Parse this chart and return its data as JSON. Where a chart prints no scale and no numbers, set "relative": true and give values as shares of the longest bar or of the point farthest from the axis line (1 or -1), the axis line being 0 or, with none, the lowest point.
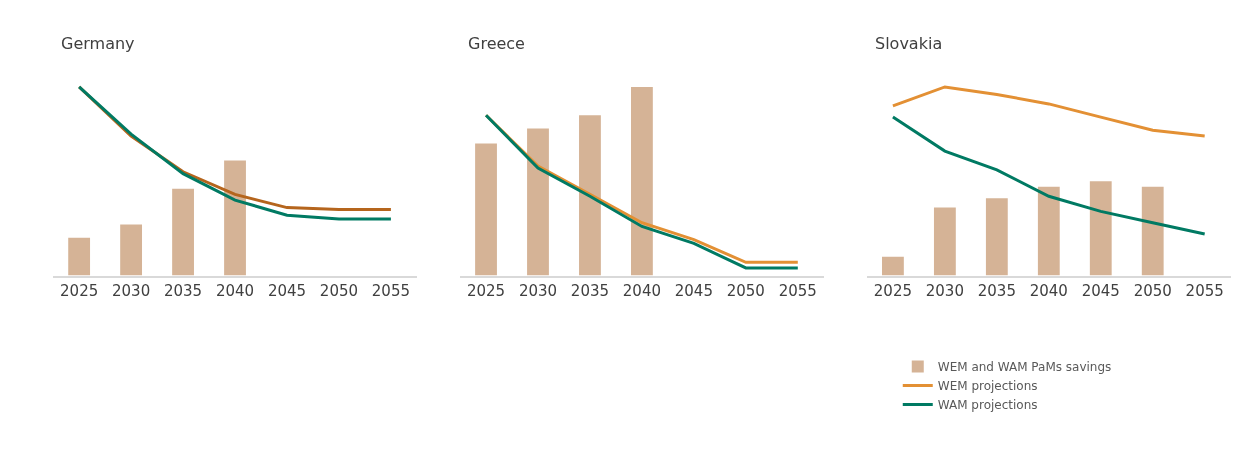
{
  "chart_data": [
    {
      "type": "bar",
      "title": "Germany",
      "categories": [
        "2025",
        "2030",
        "2035",
        "2040",
        "2045",
        "2050",
        "2055"
      ],
      "relative": true,
      "legend": false,
      "series": [
        {
          "color": "#d5b396",
          "values": [
            0.2,
            0.27,
            0.46,
            0.61,
            null,
            null,
            null
          ]
        },
        {
          "type": "line",
          "color": "#b5651d",
          "values": [
            1.0,
            0.74,
            0.55,
            0.43,
            0.36,
            0.35,
            0.35
          ]
        },
        {
          "type": "line",
          "color": "#007a63",
          "values": [
            1.0,
            0.75,
            0.54,
            0.4,
            0.32,
            0.3,
            0.3
          ]
        }
      ]
    },
    {
      "type": "bar",
      "title": "Greece",
      "categories": [
        "2025",
        "2030",
        "2035",
        "2040",
        "2045",
        "2050",
        "2055"
      ],
      "relative": true,
      "legend": false,
      "series": [
        {
          "color": "#d5b396",
          "values": [
            0.7,
            0.78,
            0.85,
            1.0,
            null,
            null,
            null
          ]
        },
        {
          "type": "line",
          "color": "#e39034",
          "values": [
            0.85,
            0.58,
            0.43,
            0.28,
            0.19,
            0.07,
            0.07
          ]
        },
        {
          "type": "line",
          "color": "#007a63",
          "values": [
            0.85,
            0.57,
            0.42,
            0.26,
            0.17,
            0.04,
            0.04
          ]
        }
      ]
    },
    {
      "type": "bar",
      "title": "Slovakia",
      "categories": [
        "2025",
        "2030",
        "2035",
        "2040",
        "2045",
        "2050",
        "2055"
      ],
      "relative": true,
      "legend": "bottom",
      "series": [
        {
          "name": "WEM and WAM PaMs savings",
          "color": "#d5b396",
          "values": [
            0.1,
            0.36,
            0.41,
            0.47,
            0.5,
            0.47,
            null
          ]
        },
        {
          "type": "line",
          "name": "WEM projections",
          "color": "#e39034",
          "values": [
            0.9,
            1.0,
            0.96,
            0.91,
            0.84,
            0.77,
            0.74
          ]
        },
        {
          "type": "line",
          "name": "WAM projections",
          "color": "#007a63",
          "values": [
            0.84,
            0.66,
            0.56,
            0.42,
            0.34,
            0.28,
            0.22
          ]
        }
      ]
    }
  ]
}
